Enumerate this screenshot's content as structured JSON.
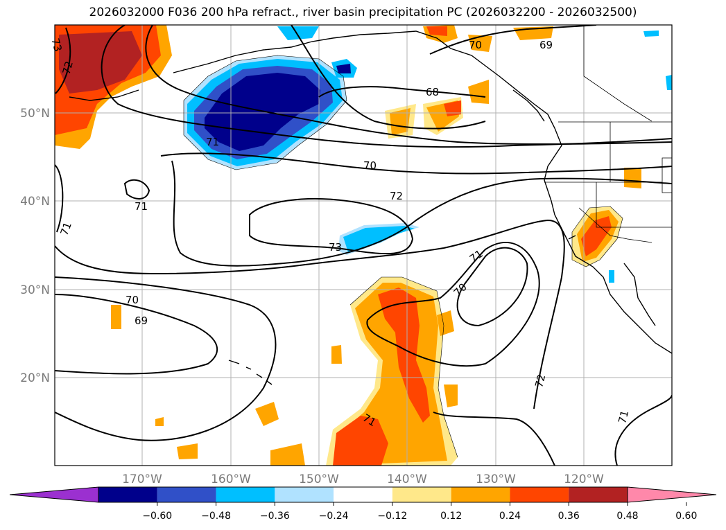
{
  "title": "2026032000 F036 200 hPa refract., river basin precipitation PC (2026032200 - 2026032500)",
  "lat_labels": [
    "50°N",
    "40°N",
    "30°N",
    "20°N"
  ],
  "lon_labels": [
    "170°W",
    "160°W",
    "150°W",
    "140°W",
    "130°W",
    "120°W"
  ],
  "colorbar": {
    "ticks": [
      "−0.60",
      "−0.48",
      "−0.36",
      "−0.24",
      "−0.12",
      "0.12",
      "0.24",
      "0.36",
      "0.48",
      "0.60"
    ],
    "colors": [
      "#9b30d0",
      "#00008b",
      "#3050c8",
      "#00bfff",
      "#b0e2ff",
      "#ffffff",
      "#ffe88a",
      "#ffa500",
      "#ff4500",
      "#b22222",
      "#ff88aa"
    ]
  },
  "contour_labels": [
    "73",
    "72",
    "70",
    "69",
    "68",
    "71",
    "70",
    "72",
    "71",
    "73",
    "71",
    "70",
    "71",
    "70",
    "69",
    "72",
    "71"
  ],
  "colors": {
    "negative_dark": "#00008b",
    "negative_mid": "#3050c8",
    "negative_light": "#00bfff",
    "negative_pale": "#b0e2ff",
    "positive_pale": "#ffe88a",
    "positive_mid": "#ffa500",
    "positive_strong": "#ff4500",
    "positive_dark": "#b22222"
  }
}
